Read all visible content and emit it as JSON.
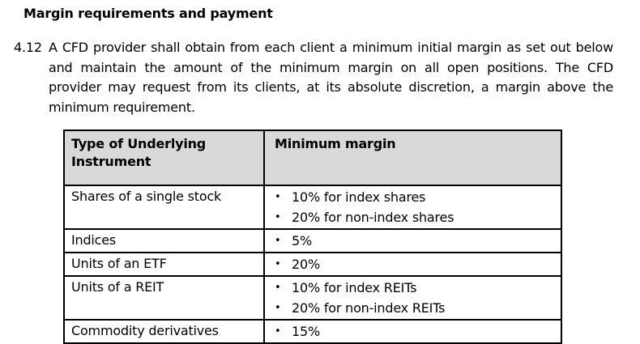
{
  "page": {
    "background": "#ffffff"
  },
  "heading": "Margin requirements and payment",
  "clause": {
    "number": "4.12",
    "text": "A CFD provider shall obtain from each client a minimum initial margin as set out below and maintain the amount of the minimum margin on all open positions. The CFD provider may request from its clients, at its absolute discretion, a margin above the minimum requirement."
  },
  "table": {
    "headers": [
      "Type of Underlying Instrument",
      "Minimum margin"
    ],
    "header_bg": "#d9d9d9",
    "border_color": "#000000",
    "bullet": "•",
    "rows": [
      {
        "instrument": "Shares of a single stock",
        "margins": [
          "10% for index shares",
          "20% for non-index shares"
        ]
      },
      {
        "instrument": "Indices",
        "margins": [
          "5%"
        ]
      },
      {
        "instrument": "Units of an ETF",
        "margins": [
          "20%"
        ]
      },
      {
        "instrument": "Units of a REIT",
        "margins": [
          "10% for index REITs",
          "20% for non-index REITs"
        ]
      },
      {
        "instrument": "Commodity derivatives",
        "margins": [
          "15%"
        ]
      }
    ]
  }
}
